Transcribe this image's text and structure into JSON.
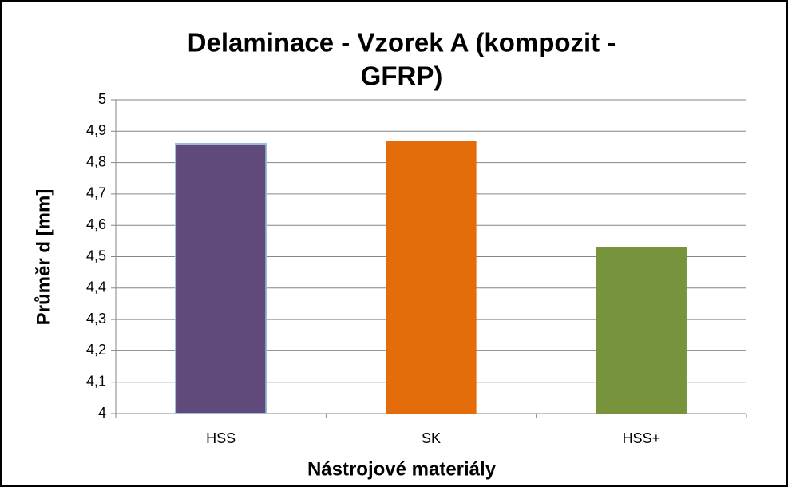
{
  "chart_data": {
    "type": "bar",
    "title": [
      "Delaminace - Vzorek A (kompozit -",
      "GFRP)"
    ],
    "x_label": "Nástrojové materiály",
    "y_label": "Průměr d [mm]",
    "categories": [
      "HSS",
      "SK",
      "HSS+"
    ],
    "values": [
      4.86,
      4.87,
      4.53
    ],
    "colors": [
      "#604a7b",
      "#e46c0a",
      "#77933c"
    ],
    "ylim": [
      4,
      5
    ],
    "yticks": [
      4,
      {
        "value": 4.1,
        "label": "4,1"
      },
      {
        "value": 4.2,
        "label": "4,2"
      },
      {
        "value": 4.3,
        "label": "4,3"
      },
      {
        "value": 4.4,
        "label": "4,4"
      },
      {
        "value": 4.5,
        "label": "4,5"
      },
      {
        "value": 4.6,
        "label": "4,6"
      },
      {
        "value": 4.7,
        "label": "4,7"
      },
      {
        "value": 4.8,
        "label": "4,8"
      },
      {
        "value": 4.9,
        "label": "4,9"
      },
      5
    ],
    "grid": true
  }
}
